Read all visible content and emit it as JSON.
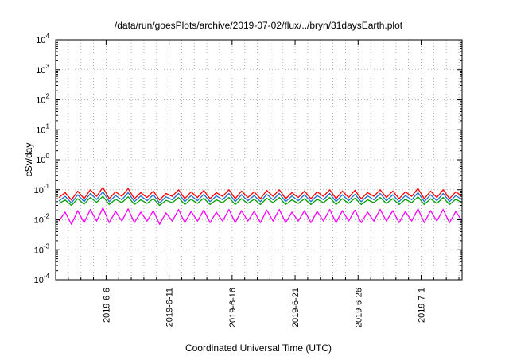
{
  "chart_data": {
    "type": "line",
    "title": "/data/run/goesPlots/archive/2019-07-02/flux/../bryn/31daysEarth.plot",
    "xlabel": "Coordinated Universal Time (UTC)",
    "ylabel": "cSv/day",
    "yscale": "log",
    "ylim": [
      0.0001,
      10000
    ],
    "xlim": [
      "2019-06-02T00:00",
      "2019-07-04T06:00"
    ],
    "grid": true,
    "y_ticks": [
      {
        "value": 0.0001,
        "base": "10",
        "exp": "-4"
      },
      {
        "value": 0.001,
        "base": "10",
        "exp": "-3"
      },
      {
        "value": 0.01,
        "base": "10",
        "exp": "-2"
      },
      {
        "value": 0.1,
        "base": "10",
        "exp": "-1"
      },
      {
        "value": 1,
        "base": "10",
        "exp": "0"
      },
      {
        "value": 10,
        "base": "10",
        "exp": "1"
      },
      {
        "value": 100,
        "base": "10",
        "exp": "2"
      },
      {
        "value": 1000,
        "base": "10",
        "exp": "3"
      },
      {
        "value": 10000,
        "base": "10",
        "exp": "4"
      }
    ],
    "x_ticks": [
      {
        "date": "2019-06-06",
        "label": "2019-6-6"
      },
      {
        "date": "2019-06-11",
        "label": "2019-6-11"
      },
      {
        "date": "2019-06-16",
        "label": "2019-6-16"
      },
      {
        "date": "2019-06-21",
        "label": "2019-6-21"
      },
      {
        "date": "2019-06-26",
        "label": "2019-6-26"
      },
      {
        "date": "2019-07-01",
        "label": "2019-7-1"
      }
    ],
    "x_minor_ticks": [
      "2019-06-03",
      "2019-06-04",
      "2019-06-05",
      "2019-06-07",
      "2019-06-08",
      "2019-06-09",
      "2019-06-10",
      "2019-06-12",
      "2019-06-13",
      "2019-06-14",
      "2019-06-15",
      "2019-06-17",
      "2019-06-18",
      "2019-06-19",
      "2019-06-20",
      "2019-06-22",
      "2019-06-23",
      "2019-06-24",
      "2019-06-25",
      "2019-06-27",
      "2019-06-28",
      "2019-06-29",
      "2019-06-30",
      "2019-07-02",
      "2019-07-03",
      "2019-07-04"
    ],
    "series": [
      {
        "color": "#ff0000",
        "x": [
          "2019-06-02T06:00",
          "2019-06-02T18:00",
          "2019-06-03T06:00",
          "2019-06-03T18:00",
          "2019-06-04T06:00",
          "2019-06-04T18:00",
          "2019-06-05T06:00",
          "2019-06-05T18:00",
          "2019-06-06T06:00",
          "2019-06-06T18:00",
          "2019-06-07T06:00",
          "2019-06-07T18:00",
          "2019-06-08T06:00",
          "2019-06-08T18:00",
          "2019-06-09T06:00",
          "2019-06-09T18:00",
          "2019-06-10T06:00",
          "2019-06-10T18:00",
          "2019-06-11T06:00",
          "2019-06-11T18:00",
          "2019-06-12T06:00",
          "2019-06-12T18:00",
          "2019-06-13T06:00",
          "2019-06-13T18:00",
          "2019-06-14T06:00",
          "2019-06-14T18:00",
          "2019-06-15T06:00",
          "2019-06-15T18:00",
          "2019-06-16T06:00",
          "2019-06-16T18:00",
          "2019-06-17T06:00",
          "2019-06-17T18:00",
          "2019-06-18T06:00",
          "2019-06-18T18:00",
          "2019-06-19T06:00",
          "2019-06-19T18:00",
          "2019-06-20T06:00",
          "2019-06-20T18:00",
          "2019-06-21T06:00",
          "2019-06-21T18:00",
          "2019-06-22T06:00",
          "2019-06-22T18:00",
          "2019-06-23T06:00",
          "2019-06-23T18:00",
          "2019-06-24T06:00",
          "2019-06-24T18:00",
          "2019-06-25T06:00",
          "2019-06-25T18:00",
          "2019-06-26T06:00",
          "2019-06-26T18:00",
          "2019-06-27T06:00",
          "2019-06-27T18:00",
          "2019-06-28T06:00",
          "2019-06-28T18:00",
          "2019-06-29T06:00",
          "2019-06-29T18:00",
          "2019-06-30T06:00",
          "2019-06-30T18:00",
          "2019-07-01T06:00",
          "2019-07-01T18:00",
          "2019-07-02T06:00",
          "2019-07-02T18:00",
          "2019-07-03T06:00",
          "2019-07-03T18:00",
          "2019-07-04T06:00"
        ],
        "y": [
          0.055,
          0.08,
          0.045,
          0.09,
          0.05,
          0.1,
          0.06,
          0.12,
          0.05,
          0.085,
          0.06,
          0.11,
          0.05,
          0.08,
          0.055,
          0.09,
          0.045,
          0.075,
          0.06,
          0.1,
          0.05,
          0.085,
          0.055,
          0.095,
          0.05,
          0.08,
          0.06,
          0.1,
          0.05,
          0.09,
          0.055,
          0.085,
          0.05,
          0.095,
          0.06,
          0.1,
          0.05,
          0.08,
          0.055,
          0.09,
          0.05,
          0.085,
          0.06,
          0.1,
          0.05,
          0.09,
          0.055,
          0.095,
          0.05,
          0.08,
          0.06,
          0.1,
          0.055,
          0.09,
          0.05,
          0.085,
          0.06,
          0.11,
          0.05,
          0.09,
          0.055,
          0.1,
          0.05,
          0.085,
          0.06
        ]
      },
      {
        "color": "#00a000",
        "x": [
          "2019-06-02T06:00",
          "2019-06-02T18:00",
          "2019-06-03T06:00",
          "2019-06-03T18:00",
          "2019-06-04T06:00",
          "2019-06-04T18:00",
          "2019-06-05T06:00",
          "2019-06-05T18:00",
          "2019-06-06T06:00",
          "2019-06-06T18:00",
          "2019-06-07T06:00",
          "2019-06-07T18:00",
          "2019-06-08T06:00",
          "2019-06-08T18:00",
          "2019-06-09T06:00",
          "2019-06-09T18:00",
          "2019-06-10T06:00",
          "2019-06-10T18:00",
          "2019-06-11T06:00",
          "2019-06-11T18:00",
          "2019-06-12T06:00",
          "2019-06-12T18:00",
          "2019-06-13T06:00",
          "2019-06-13T18:00",
          "2019-06-14T06:00",
          "2019-06-14T18:00",
          "2019-06-15T06:00",
          "2019-06-15T18:00",
          "2019-06-16T06:00",
          "2019-06-16T18:00",
          "2019-06-17T06:00",
          "2019-06-17T18:00",
          "2019-06-18T06:00",
          "2019-06-18T18:00",
          "2019-06-19T06:00",
          "2019-06-19T18:00",
          "2019-06-20T06:00",
          "2019-06-20T18:00",
          "2019-06-21T06:00",
          "2019-06-21T18:00",
          "2019-06-22T06:00",
          "2019-06-22T18:00",
          "2019-06-23T06:00",
          "2019-06-23T18:00",
          "2019-06-24T06:00",
          "2019-06-24T18:00",
          "2019-06-25T06:00",
          "2019-06-25T18:00",
          "2019-06-26T06:00",
          "2019-06-26T18:00",
          "2019-06-27T06:00",
          "2019-06-27T18:00",
          "2019-06-28T06:00",
          "2019-06-28T18:00",
          "2019-06-29T06:00",
          "2019-06-29T18:00",
          "2019-06-30T06:00",
          "2019-06-30T18:00",
          "2019-07-01T06:00",
          "2019-07-01T18:00",
          "2019-07-02T06:00",
          "2019-07-02T18:00",
          "2019-07-03T06:00",
          "2019-07-03T18:00",
          "2019-07-04T06:00"
        ],
        "y": [
          0.035,
          0.045,
          0.03,
          0.05,
          0.033,
          0.055,
          0.038,
          0.06,
          0.032,
          0.048,
          0.037,
          0.058,
          0.032,
          0.046,
          0.035,
          0.05,
          0.03,
          0.044,
          0.037,
          0.055,
          0.032,
          0.048,
          0.035,
          0.052,
          0.032,
          0.046,
          0.037,
          0.055,
          0.032,
          0.05,
          0.035,
          0.048,
          0.032,
          0.052,
          0.037,
          0.055,
          0.032,
          0.046,
          0.035,
          0.05,
          0.032,
          0.048,
          0.037,
          0.055,
          0.032,
          0.05,
          0.035,
          0.052,
          0.032,
          0.046,
          0.037,
          0.055,
          0.035,
          0.05,
          0.032,
          0.048,
          0.037,
          0.058,
          0.032,
          0.05,
          0.035,
          0.055,
          0.032,
          0.048,
          0.037
        ]
      },
      {
        "color": "#1e6ed0",
        "x": [
          "2019-06-02T06:00",
          "2019-06-02T18:00",
          "2019-06-03T06:00",
          "2019-06-03T18:00",
          "2019-06-04T06:00",
          "2019-06-04T18:00",
          "2019-06-05T06:00",
          "2019-06-05T18:00",
          "2019-06-06T06:00",
          "2019-06-06T18:00",
          "2019-06-07T06:00",
          "2019-06-07T18:00",
          "2019-06-08T06:00",
          "2019-06-08T18:00",
          "2019-06-09T06:00",
          "2019-06-09T18:00",
          "2019-06-10T06:00",
          "2019-06-10T18:00",
          "2019-06-11T06:00",
          "2019-06-11T18:00",
          "2019-06-12T06:00",
          "2019-06-12T18:00",
          "2019-06-13T06:00",
          "2019-06-13T18:00",
          "2019-06-14T06:00",
          "2019-06-14T18:00",
          "2019-06-15T06:00",
          "2019-06-15T18:00",
          "2019-06-16T06:00",
          "2019-06-16T18:00",
          "2019-06-17T06:00",
          "2019-06-17T18:00",
          "2019-06-18T06:00",
          "2019-06-18T18:00",
          "2019-06-19T06:00",
          "2019-06-19T18:00",
          "2019-06-20T06:00",
          "2019-06-20T18:00",
          "2019-06-21T06:00",
          "2019-06-21T18:00",
          "2019-06-22T06:00",
          "2019-06-22T18:00",
          "2019-06-23T06:00",
          "2019-06-23T18:00",
          "2019-06-24T06:00",
          "2019-06-24T18:00",
          "2019-06-25T06:00",
          "2019-06-25T18:00",
          "2019-06-26T06:00",
          "2019-06-26T18:00",
          "2019-06-27T06:00",
          "2019-06-27T18:00",
          "2019-06-28T06:00",
          "2019-06-28T18:00",
          "2019-06-29T06:00",
          "2019-06-29T18:00",
          "2019-06-30T06:00",
          "2019-06-30T18:00",
          "2019-07-01T06:00",
          "2019-07-01T18:00",
          "2019-07-02T06:00",
          "2019-07-02T18:00",
          "2019-07-03T06:00",
          "2019-07-03T18:00",
          "2019-07-04T06:00"
        ],
        "y": [
          0.042,
          0.06,
          0.036,
          0.068,
          0.04,
          0.075,
          0.047,
          0.085,
          0.04,
          0.064,
          0.046,
          0.08,
          0.04,
          0.062,
          0.043,
          0.068,
          0.036,
          0.058,
          0.046,
          0.075,
          0.04,
          0.064,
          0.043,
          0.07,
          0.04,
          0.062,
          0.046,
          0.075,
          0.04,
          0.068,
          0.043,
          0.064,
          0.04,
          0.07,
          0.046,
          0.075,
          0.04,
          0.062,
          0.043,
          0.068,
          0.04,
          0.064,
          0.046,
          0.075,
          0.04,
          0.068,
          0.043,
          0.07,
          0.04,
          0.062,
          0.046,
          0.075,
          0.043,
          0.068,
          0.04,
          0.064,
          0.046,
          0.08,
          0.04,
          0.068,
          0.043,
          0.075,
          0.04,
          0.064,
          0.046
        ]
      },
      {
        "color": "#ff00ff",
        "x": [
          "2019-06-02T06:00",
          "2019-06-02T18:00",
          "2019-06-03T06:00",
          "2019-06-03T18:00",
          "2019-06-04T06:00",
          "2019-06-04T18:00",
          "2019-06-05T06:00",
          "2019-06-05T18:00",
          "2019-06-06T06:00",
          "2019-06-06T18:00",
          "2019-06-07T06:00",
          "2019-06-07T18:00",
          "2019-06-08T06:00",
          "2019-06-08T18:00",
          "2019-06-09T06:00",
          "2019-06-09T18:00",
          "2019-06-10T06:00",
          "2019-06-10T18:00",
          "2019-06-11T06:00",
          "2019-06-11T18:00",
          "2019-06-12T06:00",
          "2019-06-12T18:00",
          "2019-06-13T06:00",
          "2019-06-13T18:00",
          "2019-06-14T06:00",
          "2019-06-14T18:00",
          "2019-06-15T06:00",
          "2019-06-15T18:00",
          "2019-06-16T06:00",
          "2019-06-16T18:00",
          "2019-06-17T06:00",
          "2019-06-17T18:00",
          "2019-06-18T06:00",
          "2019-06-18T18:00",
          "2019-06-19T06:00",
          "2019-06-19T18:00",
          "2019-06-20T06:00",
          "2019-06-20T18:00",
          "2019-06-21T06:00",
          "2019-06-21T18:00",
          "2019-06-22T06:00",
          "2019-06-22T18:00",
          "2019-06-23T06:00",
          "2019-06-23T18:00",
          "2019-06-24T06:00",
          "2019-06-24T18:00",
          "2019-06-25T06:00",
          "2019-06-25T18:00",
          "2019-06-26T06:00",
          "2019-06-26T18:00",
          "2019-06-27T06:00",
          "2019-06-27T18:00",
          "2019-06-28T06:00",
          "2019-06-28T18:00",
          "2019-06-29T06:00",
          "2019-06-29T18:00",
          "2019-06-30T06:00",
          "2019-06-30T18:00",
          "2019-07-01T06:00",
          "2019-07-01T18:00",
          "2019-07-02T06:00",
          "2019-07-02T18:00",
          "2019-07-03T06:00",
          "2019-07-03T18:00",
          "2019-07-04T06:00"
        ],
        "y": [
          0.009,
          0.018,
          0.007,
          0.02,
          0.008,
          0.022,
          0.009,
          0.025,
          0.008,
          0.019,
          0.009,
          0.023,
          0.008,
          0.018,
          0.009,
          0.02,
          0.007,
          0.017,
          0.009,
          0.022,
          0.008,
          0.019,
          0.009,
          0.021,
          0.008,
          0.018,
          0.009,
          0.022,
          0.008,
          0.02,
          0.009,
          0.019,
          0.008,
          0.021,
          0.009,
          0.022,
          0.008,
          0.018,
          0.009,
          0.02,
          0.008,
          0.019,
          0.009,
          0.022,
          0.008,
          0.02,
          0.009,
          0.021,
          0.008,
          0.018,
          0.009,
          0.022,
          0.009,
          0.02,
          0.008,
          0.019,
          0.009,
          0.023,
          0.008,
          0.02,
          0.009,
          0.022,
          0.008,
          0.019,
          0.009
        ]
      }
    ]
  }
}
